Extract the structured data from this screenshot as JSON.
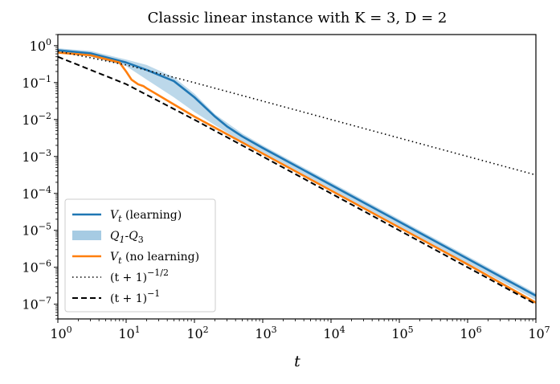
{
  "chart_data": {
    "type": "line",
    "title": "Classic linear instance with K = 3, D = 2",
    "xlabel": "t",
    "ylabel": "",
    "xscale": "log",
    "yscale": "log",
    "xlim": [
      1,
      10000000
    ],
    "ylim": [
      4e-08,
      2.0
    ],
    "grid": false,
    "legend_position": "lower-left",
    "x_ticks": [
      {
        "value": 1,
        "base": "10",
        "exp": "0"
      },
      {
        "value": 10,
        "base": "10",
        "exp": "1"
      },
      {
        "value": 100,
        "base": "10",
        "exp": "2"
      },
      {
        "value": 1000,
        "base": "10",
        "exp": "3"
      },
      {
        "value": 10000,
        "base": "10",
        "exp": "4"
      },
      {
        "value": 100000,
        "base": "10",
        "exp": "5"
      },
      {
        "value": 1000000,
        "base": "10",
        "exp": "6"
      },
      {
        "value": 10000000,
        "base": "10",
        "exp": "7"
      }
    ],
    "y_ticks": [
      {
        "value": 1,
        "base": "10",
        "exp": "0"
      },
      {
        "value": 0.1,
        "base": "10",
        "exp": "−1"
      },
      {
        "value": 0.01,
        "base": "10",
        "exp": "−2"
      },
      {
        "value": 0.001,
        "base": "10",
        "exp": "−3"
      },
      {
        "value": 0.0001,
        "base": "10",
        "exp": "−4"
      },
      {
        "value": 1e-05,
        "base": "10",
        "exp": "−5"
      },
      {
        "value": 1e-06,
        "base": "10",
        "exp": "−6"
      },
      {
        "value": 1e-07,
        "base": "10",
        "exp": "−7"
      }
    ],
    "series": [
      {
        "name": "Vt (learning)",
        "color": "#1f77b4",
        "style": "solid",
        "x": [
          1,
          3,
          10,
          20,
          50,
          100,
          200,
          300,
          500,
          1000,
          10000,
          100000,
          1000000,
          10000000
        ],
        "y": [
          0.75,
          0.62,
          0.35,
          0.22,
          0.11,
          0.04,
          0.012,
          0.0065,
          0.0035,
          0.0017,
          0.00017,
          1.7e-05,
          1.7e-06,
          1.7e-07
        ]
      },
      {
        "name": "Vt (no learning)",
        "color": "#ff7f0e",
        "style": "solid",
        "x": [
          1,
          3,
          8,
          10,
          12,
          15,
          18,
          20,
          30,
          100,
          1000,
          10000,
          100000,
          1000000,
          10000000
        ],
        "y": [
          0.65,
          0.55,
          0.35,
          0.2,
          0.12,
          0.09,
          0.08,
          0.07,
          0.045,
          0.012,
          0.0012,
          0.00012,
          1.2e-05,
          1.2e-06,
          1.1e-07
        ]
      },
      {
        "name": "(t+1)^-1/2",
        "color": "#000000",
        "style": "dotted",
        "x": [
          1,
          10,
          100,
          1000,
          10000,
          100000,
          1000000,
          10000000
        ],
        "y": [
          0.7071,
          0.3015,
          0.0995,
          0.0316,
          0.01,
          0.00316,
          0.001,
          0.000316
        ]
      },
      {
        "name": "(t+1)^-1",
        "color": "#000000",
        "style": "dashed",
        "x": [
          1,
          10,
          100,
          1000,
          10000,
          100000,
          1000000,
          10000000
        ],
        "y": [
          0.5,
          0.0909,
          0.0099,
          0.001,
          0.0001,
          1e-05,
          1e-06,
          1e-07
        ]
      }
    ],
    "band": {
      "name": "Q1-Q3",
      "color": "#a6cbe3",
      "x": [
        1,
        3,
        10,
        20,
        50,
        100,
        200,
        500,
        1000,
        10000,
        100000,
        1000000,
        10000000
      ],
      "lower": [
        0.65,
        0.5,
        0.28,
        0.12,
        0.04,
        0.016,
        0.007,
        0.0025,
        0.0013,
        0.00013,
        1.3e-05,
        1.3e-06,
        1.3e-07
      ],
      "upper": [
        0.85,
        0.72,
        0.42,
        0.3,
        0.14,
        0.05,
        0.014,
        0.0042,
        0.002,
        0.0002,
        2e-05,
        2e-06,
        2e-07
      ]
    },
    "legend": [
      {
        "label_main": "V",
        "label_sub": "t",
        "label_rest": " (learning)",
        "kind": "line",
        "color": "#1f77b4",
        "style": "solid"
      },
      {
        "label_main": "Q",
        "label_sub": "1",
        "label_rest": "-Q",
        "label_sub2": "3",
        "kind": "patch",
        "color": "#a6cbe3"
      },
      {
        "label_main": "V",
        "label_sub": "t",
        "label_rest": " (no learning)",
        "kind": "line",
        "color": "#ff7f0e",
        "style": "solid"
      },
      {
        "label_main": "(t + 1)",
        "label_sup": "−1/2",
        "kind": "line",
        "color": "#000000",
        "style": "dotted"
      },
      {
        "label_main": "(t + 1)",
        "label_sup": "−1",
        "kind": "line",
        "color": "#000000",
        "style": "dashed"
      }
    ]
  }
}
